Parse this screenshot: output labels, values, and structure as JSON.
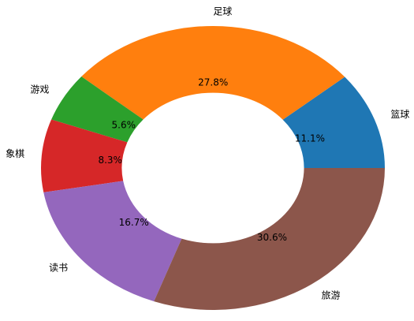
{
  "chart_data": {
    "type": "donut",
    "categories": [
      "篮球",
      "足球",
      "游戏",
      "象棋",
      "读书",
      "旅游"
    ],
    "values": [
      11.1,
      27.8,
      5.6,
      8.3,
      16.7,
      30.6
    ],
    "value_labels": [
      "11.1%",
      "27.8%",
      "5.6%",
      "8.3%",
      "16.7%",
      "30.6%"
    ],
    "colors": [
      "#1f77b4",
      "#ff7f0e",
      "#2ca02c",
      "#d62728",
      "#9467bd",
      "#8c564b"
    ]
  }
}
